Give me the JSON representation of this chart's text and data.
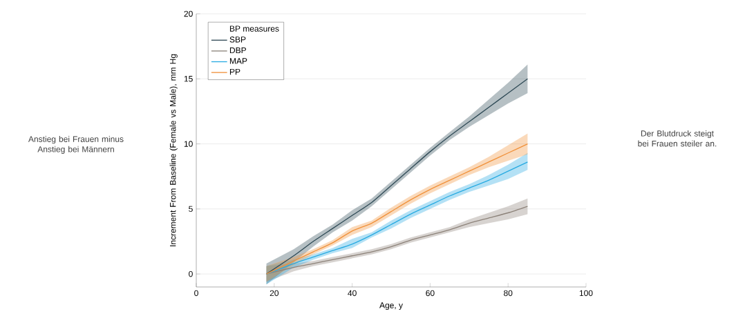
{
  "chart_data": {
    "type": "line",
    "xlabel": "Age, y",
    "ylabel": "Increment From Baseline (Female vs Male), mm Hg",
    "legend_title": "BP measures",
    "legend": "top left",
    "grid": "y",
    "x": [
      18,
      25,
      30,
      35,
      40,
      45,
      50,
      55,
      60,
      65,
      70,
      75,
      80,
      85
    ],
    "xlim": [
      0,
      100
    ],
    "xticks": [
      0,
      20,
      40,
      60,
      80,
      100
    ],
    "ylim": [
      -1,
      20
    ],
    "yticks": [
      0,
      5,
      10,
      15,
      20
    ],
    "series": [
      {
        "name": "SBP",
        "color": "#2f4a56",
        "values": [
          0,
          1.4,
          2.5,
          3.5,
          4.5,
          5.5,
          6.8,
          8.1,
          9.4,
          10.6,
          11.7,
          12.8,
          13.9,
          15.0
        ],
        "lower": [
          -0.8,
          0.9,
          2.1,
          3.2,
          4.1,
          5.2,
          6.5,
          7.8,
          9.1,
          10.3,
          11.3,
          12.2,
          13.1,
          13.9
        ],
        "upper": [
          0.8,
          1.9,
          2.9,
          3.8,
          4.9,
          5.8,
          7.1,
          8.4,
          9.7,
          10.9,
          12.1,
          13.4,
          14.7,
          16.1
        ]
      },
      {
        "name": "DBP",
        "color": "#8c8279",
        "values": [
          0,
          0.5,
          0.8,
          1.1,
          1.4,
          1.7,
          2.1,
          2.6,
          3.0,
          3.4,
          3.9,
          4.3,
          4.7,
          5.2
        ],
        "lower": [
          -0.6,
          0.2,
          0.6,
          0.9,
          1.2,
          1.5,
          1.9,
          2.4,
          2.8,
          3.2,
          3.6,
          3.9,
          4.2,
          4.6
        ],
        "upper": [
          0.6,
          0.8,
          1.0,
          1.3,
          1.6,
          1.9,
          2.3,
          2.8,
          3.2,
          3.6,
          4.2,
          4.7,
          5.2,
          5.8
        ]
      },
      {
        "name": "MAP",
        "color": "#27aae1",
        "values": [
          0,
          0.8,
          1.3,
          1.8,
          2.3,
          3.0,
          3.8,
          4.6,
          5.3,
          6.0,
          6.6,
          7.2,
          7.9,
          8.6
        ],
        "lower": [
          -0.8,
          0.5,
          1.1,
          1.6,
          2.0,
          2.8,
          3.5,
          4.3,
          5.0,
          5.7,
          6.3,
          6.8,
          7.3,
          8.0
        ],
        "upper": [
          0.6,
          1.1,
          1.5,
          2.0,
          2.7,
          3.2,
          4.1,
          4.9,
          5.6,
          6.3,
          6.9,
          7.6,
          8.4,
          9.3
        ]
      },
      {
        "name": "PP",
        "color": "#f0913a",
        "values": [
          0,
          1.0,
          1.7,
          2.4,
          3.3,
          3.9,
          4.8,
          5.7,
          6.5,
          7.2,
          7.9,
          8.6,
          9.3,
          10.0
        ],
        "lower": [
          -0.6,
          0.7,
          1.5,
          2.2,
          3.0,
          3.6,
          4.5,
          5.4,
          6.2,
          6.9,
          7.6,
          8.2,
          8.7,
          9.2
        ],
        "upper": [
          0.6,
          1.3,
          1.9,
          2.6,
          3.6,
          4.1,
          5.1,
          6.0,
          6.8,
          7.5,
          8.2,
          9.0,
          9.9,
          10.8
        ]
      }
    ],
    "annotations": [
      "Anstieg bei Frauen minus Anstieg bei Männern",
      "Der Blutdruck steigt bei Frauen steiler an."
    ]
  }
}
